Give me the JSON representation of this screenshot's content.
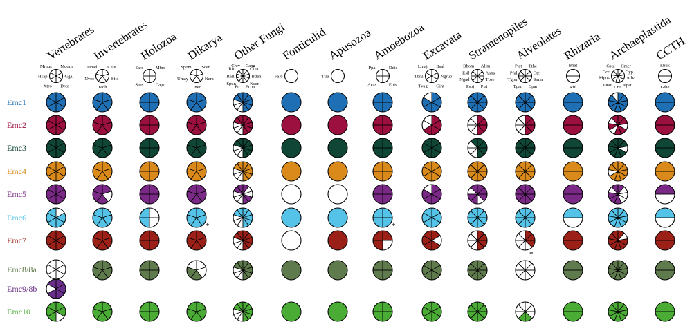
{
  "groups": [
    {
      "name": "Vertebrates",
      "species": [
        "Mdom",
        "Ggal",
        "Drer",
        "Xtro",
        "Hsap",
        "Mmus"
      ]
    },
    {
      "name": "Invertebrates",
      "species": [
        "Cele",
        "Bflo",
        "Tadh",
        "Nvec",
        "Dmel"
      ]
    },
    {
      "name": "Holozoa",
      "species": [
        "Mbre",
        "Capo",
        "Sros",
        "Sarc"
      ]
    },
    {
      "name": "Dikarya",
      "species": [
        "Scer",
        "Ncra",
        "Cneo",
        "Umay",
        "Spom"
      ]
    },
    {
      "name": "Other Fungi",
      "species": [
        "Cang",
        "Ccor",
        "Bden",
        "Ncer",
        "Ecun",
        "Ptr",
        "Spun",
        "Rall",
        "Rirr",
        "Crev"
      ]
    },
    {
      "name": "Fonticulid",
      "species": [
        "Falb"
      ]
    },
    {
      "name": "Apusozoa",
      "species": [
        "Ttra"
      ]
    },
    {
      "name": "Amoebozoa",
      "species": [
        "Ddis",
        "Ehis",
        "Acas",
        "Ppal"
      ]
    },
    {
      "name": "Excavata",
      "species": [
        "Bsal",
        "Ngrub",
        "Gint",
        "Tvag",
        "Tbru",
        "Lmaj"
      ]
    },
    {
      "name": "Stramenopiles",
      "species": [
        "Alim",
        "Aana",
        "Tpse",
        "Ptri",
        "Psoj",
        "Ngad",
        "Esil",
        "Bhom"
      ]
    },
    {
      "name": "Alveolates",
      "species": [
        "Tthe",
        "Otri",
        "Smin",
        "Cpar",
        "Tpar",
        "Tgon",
        "Pfal",
        "Ptet"
      ]
    },
    {
      "name": "Rhizaria",
      "species": [
        "Bnat",
        "Rfil"
      ]
    },
    {
      "name": "Archaeplastida",
      "species": [
        "Cmer",
        "Cyp",
        "Atha",
        "Ppat",
        "Crei",
        "Otau",
        "Mpus",
        "Ccri",
        "Gsul"
      ]
    },
    {
      "name": "CCTH",
      "species": [
        "Ehux",
        "Gthe"
      ]
    }
  ],
  "rows": [
    {
      "label": "Emc1",
      "color": "#1f6fb4"
    },
    {
      "label": "Emc2",
      "color": "#9c1040"
    },
    {
      "label": "Emc3",
      "color": "#0f4636"
    },
    {
      "label": "Emc4",
      "color": "#d98a1b"
    },
    {
      "label": "Emc5",
      "color": "#7a2a86"
    },
    {
      "label": "Emc6",
      "color": "#55c3e8"
    },
    {
      "label": "Emc7",
      "color": "#9b2018"
    },
    {
      "label": "Emc8/8a",
      "color": "#5f7a4c"
    },
    {
      "label": "Emc9/8b",
      "color": "#6a2f8a"
    },
    {
      "label": "Emc10",
      "color": "#4aab35"
    }
  ],
  "merged_label_row": "Emc8/8a",
  "cells": {
    "Emc1": [
      [
        1,
        1,
        1,
        1,
        1,
        1
      ],
      [
        1,
        1,
        1,
        1,
        1
      ],
      [
        1,
        1,
        1,
        1
      ],
      [
        1,
        1,
        1,
        1,
        1
      ],
      [
        1,
        1,
        1,
        1,
        1,
        0,
        0,
        0,
        1,
        1
      ],
      [
        1
      ],
      [
        1
      ],
      [
        1,
        1,
        1,
        1
      ],
      [
        1,
        1,
        1,
        1,
        1,
        0
      ],
      [
        1,
        1,
        1,
        1,
        1,
        1,
        1,
        1
      ],
      [
        1,
        1,
        1,
        1,
        1,
        1,
        1,
        1
      ],
      [
        1,
        1
      ],
      [
        1,
        1,
        1,
        1,
        1,
        1,
        1,
        1,
        0
      ],
      [
        1,
        1
      ]
    ],
    "Emc2": [
      [
        1,
        1,
        1,
        1,
        1,
        1
      ],
      [
        1,
        1,
        1,
        1,
        1
      ],
      [
        1,
        1,
        1,
        1
      ],
      [
        1,
        1,
        1,
        1,
        1
      ],
      [
        1,
        1,
        1,
        1,
        1,
        0,
        0,
        0,
        1,
        1
      ],
      [
        1
      ],
      [
        1
      ],
      [
        1,
        1,
        1,
        1
      ],
      [
        1,
        1,
        1,
        1,
        0,
        0
      ],
      [
        1,
        1,
        1,
        1,
        0,
        0,
        0,
        0
      ],
      [
        1,
        1,
        1,
        1,
        0,
        0,
        0,
        0
      ],
      [
        1,
        1
      ],
      [
        1,
        1,
        0,
        1,
        1,
        0,
        1,
        0,
        1
      ],
      [
        1,
        1
      ]
    ],
    "Emc3": [
      [
        1,
        1,
        1,
        1,
        1,
        1
      ],
      [
        1,
        1,
        1,
        1,
        1
      ],
      [
        1,
        1,
        1,
        1
      ],
      [
        1,
        1,
        1,
        1,
        1
      ],
      [
        1,
        1,
        1,
        1,
        1,
        0,
        0,
        0,
        1,
        1
      ],
      [
        1
      ],
      [
        1
      ],
      [
        1,
        1,
        1,
        1
      ],
      [
        1,
        1,
        1,
        1,
        1,
        1
      ],
      [
        1,
        1,
        1,
        1,
        0,
        0,
        0,
        1
      ],
      [
        1,
        1,
        1,
        1,
        1,
        1,
        1,
        1
      ],
      [
        1,
        1
      ],
      [
        1,
        1,
        0,
        1,
        1,
        1,
        1,
        1,
        1
      ],
      [
        1,
        1
      ]
    ],
    "Emc4": [
      [
        1,
        1,
        1,
        1,
        1,
        1
      ],
      [
        1,
        1,
        1,
        1,
        1
      ],
      [
        1,
        1,
        1,
        1
      ],
      [
        1,
        1,
        1,
        1,
        1
      ],
      [
        1,
        1,
        1,
        1,
        1,
        0,
        0,
        0,
        1,
        1
      ],
      [
        1
      ],
      [
        1
      ],
      [
        1,
        1,
        1,
        1
      ],
      [
        1,
        1,
        1,
        1,
        1,
        1
      ],
      [
        1,
        1,
        1,
        1,
        1,
        1,
        1,
        1
      ],
      [
        1,
        1,
        1,
        1,
        1,
        1,
        1,
        1
      ],
      [
        1,
        1
      ],
      [
        1,
        1,
        1,
        1,
        1,
        1,
        0,
        1,
        1
      ],
      [
        1,
        1
      ]
    ],
    "Emc5": [
      [
        1,
        1,
        1,
        1,
        1,
        1
      ],
      [
        1,
        0,
        1,
        1,
        1
      ],
      [
        1,
        1,
        1,
        1
      ],
      [
        1,
        1,
        1,
        1,
        1
      ],
      [
        1,
        0,
        0,
        1,
        1,
        0,
        0,
        0,
        1,
        1
      ],
      [
        0
      ],
      [
        0
      ],
      [
        1,
        1,
        1,
        1
      ],
      [
        1,
        1,
        1,
        1,
        1,
        0
      ],
      [
        1,
        1,
        1,
        0,
        1,
        1,
        0,
        1
      ],
      [
        1,
        1,
        1,
        1,
        1,
        1,
        1,
        1
      ],
      [
        1,
        1
      ],
      [
        1,
        0,
        0,
        0,
        1,
        1,
        1,
        0,
        1
      ],
      [
        1,
        0
      ]
    ],
    "Emc6": [
      [
        0,
        1,
        1,
        1,
        1,
        1
      ],
      [
        1,
        1,
        1,
        1,
        1
      ],
      [
        0,
        0,
        1,
        1
      ],
      [
        1,
        1,
        1,
        1,
        1
      ],
      [
        1,
        1,
        1,
        1,
        1,
        0,
        0,
        0,
        1,
        1
      ],
      [
        1
      ],
      [
        1
      ],
      [
        1,
        1,
        1,
        1
      ],
      [
        1,
        1,
        1,
        1,
        1,
        1
      ],
      [
        1,
        1,
        1,
        1,
        1,
        1,
        1,
        1
      ],
      [
        1,
        1,
        1,
        1,
        1,
        1,
        1,
        1
      ],
      [
        1,
        0
      ],
      [
        1,
        1,
        1,
        1,
        1,
        1,
        1,
        1,
        1
      ],
      [
        1,
        0
      ]
    ],
    "Emc7": [
      [
        1,
        1,
        1,
        1,
        1,
        1
      ],
      [
        1,
        1,
        1,
        1,
        1
      ],
      [
        1,
        1,
        1,
        1
      ],
      [
        1,
        1,
        1,
        1,
        1
      ],
      [
        1,
        1,
        1,
        1,
        1,
        0,
        0,
        0,
        1,
        1
      ],
      [
        0
      ],
      [
        1
      ],
      [
        1,
        0,
        1,
        1
      ],
      [
        1,
        0,
        1,
        1,
        1,
        1
      ],
      [
        1,
        1,
        1,
        1,
        0,
        0,
        0,
        0
      ],
      [
        1,
        1,
        1,
        0,
        0,
        0,
        0,
        0
      ],
      [
        1,
        1
      ],
      [
        1,
        0,
        1,
        1,
        1,
        1,
        1,
        1,
        1
      ],
      [
        1,
        1
      ]
    ],
    "Emc8/8a": [
      [
        0,
        0,
        0,
        0,
        0,
        0
      ],
      [
        1,
        1,
        1,
        1,
        1
      ],
      [
        1,
        1,
        1,
        1
      ],
      [
        0,
        0,
        1,
        1,
        0
      ],
      [
        1,
        1,
        1,
        1,
        1,
        0,
        0,
        0,
        1,
        1
      ],
      [
        1
      ],
      [
        1
      ],
      [
        1,
        1,
        1,
        1
      ],
      [
        1,
        1,
        1,
        1,
        1,
        1
      ],
      [
        1,
        1,
        1,
        1,
        1,
        1,
        1,
        1
      ],
      [
        0,
        0,
        0,
        0,
        0,
        0,
        0,
        0
      ],
      [
        1,
        1
      ],
      [
        1,
        1,
        1,
        1,
        1,
        1,
        1,
        1,
        1
      ],
      [
        1,
        1
      ]
    ],
    "Emc9/8b": [
      [
        1,
        1,
        1,
        1,
        0,
        1
      ]
    ],
    "Emc10": [
      [
        1,
        1,
        0,
        1,
        1,
        1
      ],
      [
        1,
        1,
        1,
        1,
        1
      ],
      [
        1,
        1,
        1,
        1
      ],
      [
        1,
        1,
        1,
        1,
        1
      ],
      [
        1,
        1,
        1,
        1,
        1,
        0,
        0,
        0,
        1,
        1
      ],
      [
        1
      ],
      [
        1
      ],
      [
        1,
        1,
        1,
        1
      ],
      [
        1,
        1,
        1,
        1,
        1,
        1
      ],
      [
        1,
        1,
        1,
        1,
        1,
        1,
        1,
        1
      ],
      [
        0,
        0,
        0,
        1,
        1,
        0,
        0,
        0
      ],
      [
        1,
        1
      ],
      [
        1,
        1,
        1,
        1,
        1,
        1,
        1,
        1,
        1
      ],
      [
        1,
        1
      ]
    ]
  },
  "asterisks": [
    {
      "row": "Emc6",
      "group": "Dikarya",
      "text": "*"
    },
    {
      "row": "Emc6",
      "group": "Amoebozoa",
      "text": "*"
    },
    {
      "row": "Emc7",
      "group": "Alveolates",
      "text": "*"
    }
  ]
}
